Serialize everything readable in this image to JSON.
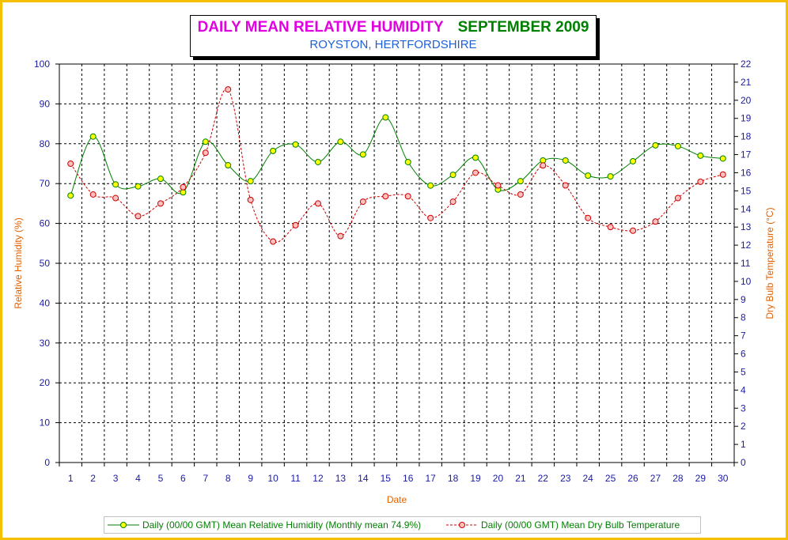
{
  "chart_data": {
    "type": "line",
    "title": "DAILY MEAN RELATIVE HUMIDITY",
    "title_date": "SEPTEMBER 2009",
    "subtitle": "ROYSTON, HERTFORDSHIRE",
    "xlabel": "Date",
    "ylabel_left": "Relative Humidity (%)",
    "ylabel_right": "Dry Bulb Temperature (°C)",
    "x": [
      1,
      2,
      3,
      4,
      5,
      6,
      7,
      8,
      9,
      10,
      11,
      12,
      13,
      14,
      15,
      16,
      17,
      18,
      19,
      20,
      21,
      22,
      23,
      24,
      25,
      26,
      27,
      28,
      29,
      30
    ],
    "y_left_lim": [
      0,
      100
    ],
    "y_left_ticks": [
      0,
      10,
      20,
      30,
      40,
      50,
      60,
      70,
      80,
      90,
      100
    ],
    "y_right_lim": [
      0,
      22
    ],
    "y_right_ticks": [
      0,
      1,
      2,
      3,
      4,
      5,
      6,
      7,
      8,
      9,
      10,
      11,
      12,
      13,
      14,
      15,
      16,
      17,
      18,
      19,
      20,
      21,
      22
    ],
    "grid": true,
    "legend_position": "bottom",
    "series": [
      {
        "name": "Daily (00/00 GMT) Mean Relative Humidity (Monthly mean 74.9%)",
        "axis": "left",
        "color": "#008000",
        "marker_color": "#ffff00",
        "style": "solid",
        "values": [
          67.0,
          81.8,
          69.8,
          69.3,
          71.2,
          67.8,
          80.5,
          74.6,
          70.6,
          78.2,
          79.8,
          75.4,
          80.5,
          77.3,
          86.6,
          75.4,
          69.5,
          72.2,
          76.5,
          68.5,
          70.6,
          75.8,
          75.8,
          72.0,
          71.8,
          75.6,
          79.6,
          79.4,
          77.0,
          76.3
        ]
      },
      {
        "name": "Daily (00/00 GMT) Mean Dry Bulb Temperature",
        "axis": "right",
        "color": "#cc0000",
        "marker_color": "#ffc0c0",
        "style": "dashed",
        "values": [
          16.5,
          14.8,
          14.6,
          13.6,
          14.3,
          15.2,
          17.1,
          20.6,
          14.5,
          12.2,
          13.1,
          14.3,
          12.5,
          14.4,
          14.7,
          14.7,
          13.5,
          14.4,
          16.0,
          15.3,
          14.8,
          16.4,
          15.3,
          13.5,
          13.0,
          12.8,
          13.3,
          14.6,
          15.5,
          15.9
        ]
      }
    ]
  }
}
